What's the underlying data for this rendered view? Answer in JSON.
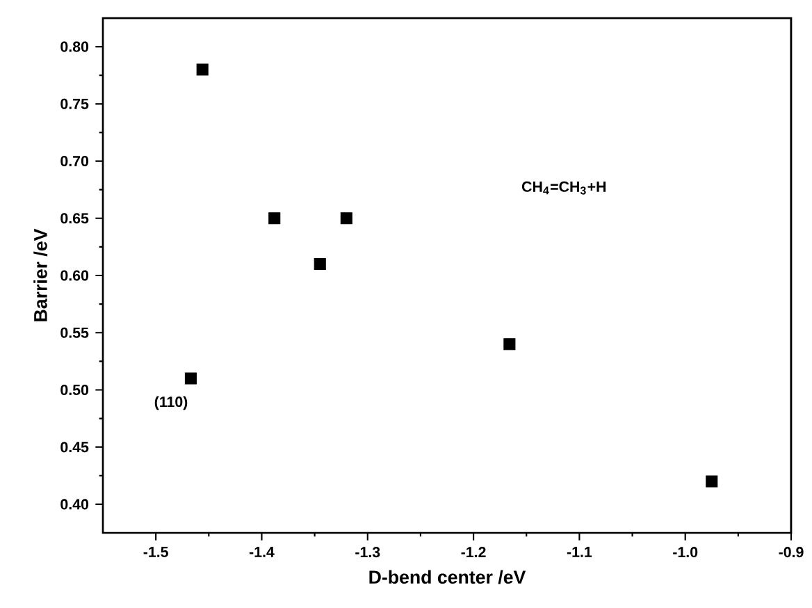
{
  "chart_data": {
    "type": "scatter",
    "xlabel": "D-bend center /eV",
    "ylabel": "Barrier /eV",
    "x": [
      -1.456,
      -1.467,
      -1.388,
      -1.345,
      -1.32,
      -1.166,
      -0.975
    ],
    "series": [
      {
        "color": "#000000",
        "values": [
          0.78,
          0.51,
          0.65,
          0.61,
          0.65,
          0.54,
          0.42
        ]
      }
    ],
    "xlim": [
      -1.55,
      -0.9
    ],
    "ylim": [
      0.375,
      0.825
    ],
    "xticks": [
      -1.5,
      -1.4,
      -1.3,
      -1.2,
      -1.1,
      {
        "value": -1.0,
        "label": "-1.0"
      },
      -0.9
    ],
    "yticks": [
      {
        "value": 0.4,
        "label": "0.40"
      },
      0.45,
      {
        "value": 0.5,
        "label": "0.50"
      },
      0.55,
      {
        "value": 0.6,
        "label": "0.60"
      },
      0.65,
      {
        "value": 0.7,
        "label": "0.70"
      },
      0.75,
      {
        "value": 0.8,
        "label": "0.80"
      }
    ],
    "marker": "square",
    "grid": false,
    "annotations": [
      {
        "text": "(110)",
        "x": -1.467,
        "y": 0.51
      },
      "CH$_{4}$=CH$_{3}$+H"
    ]
  }
}
